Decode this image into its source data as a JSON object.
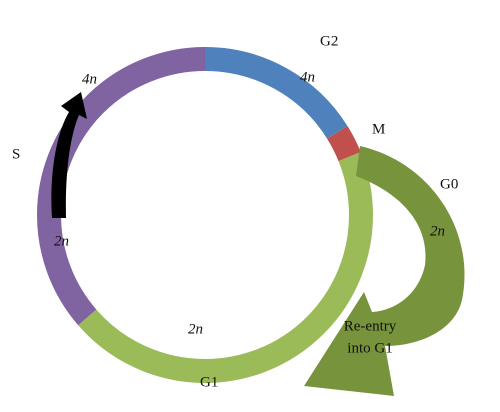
{
  "phases": [
    {
      "name": "G2",
      "ploidy": "4n"
    },
    {
      "name": "M"
    },
    {
      "name": "G0",
      "ploidy": "2n"
    },
    {
      "name": "G1",
      "ploidy": "2n"
    },
    {
      "name": "S",
      "ploidy_start": "2n",
      "ploidy_end": "4n"
    }
  ],
  "reentry": {
    "lines": [
      "Re-entry",
      "into G1"
    ]
  }
}
